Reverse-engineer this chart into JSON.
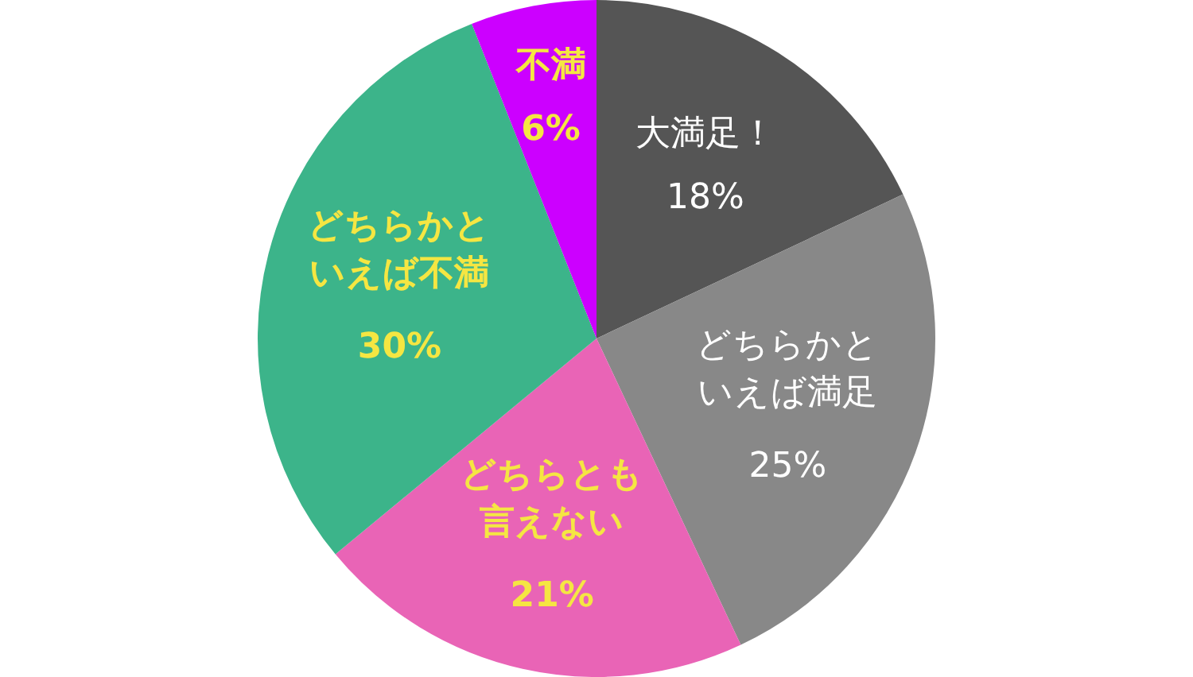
{
  "chart_data": {
    "type": "pie",
    "categories": [
      "大満足！",
      "どちらかといえば満足",
      "どちらとも言えない",
      "どちらかといえば不満",
      "不満"
    ],
    "values": [
      18,
      25,
      21,
      30,
      6
    ],
    "value_labels": [
      "18%",
      "25%",
      "21%",
      "30%",
      "6%"
    ],
    "colors": [
      "#555555",
      "#888888",
      "#e964b6",
      "#3cb48a",
      "#cc00ff"
    ],
    "legend": false
  }
}
